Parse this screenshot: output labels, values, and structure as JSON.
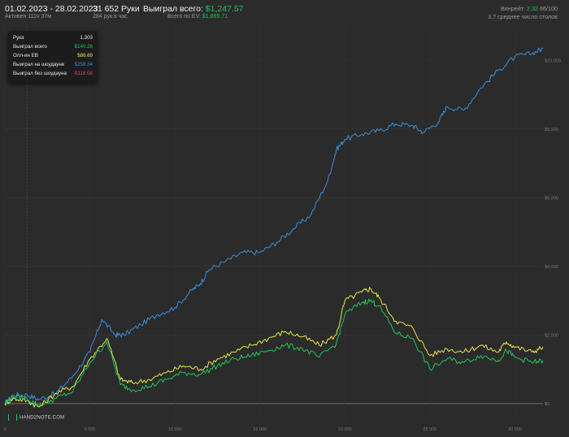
{
  "header": {
    "date_range": "01.02.2023 - 28.02.2023",
    "active_time": "Активен 111ч 37м",
    "hands_total": "31 652 Руки",
    "hands_per_hour": "284 рук в час",
    "won_label": "Выиграл всего:",
    "won_value": "$1,247.57",
    "ev_label": "Всего по EV:",
    "ev_value": "$1,665.71",
    "winrate_label": "Винрейт:",
    "winrate_value": "2.32",
    "winrate_suffix": "66/100",
    "avg_tables": "3.7 среднее число столов"
  },
  "tooltip": {
    "rows": [
      {
        "label": "Рука",
        "value": "1,303",
        "color": "#e8e8e8"
      },
      {
        "label": "Выиграл всего",
        "value": "$140.26",
        "color": "#22c55e"
      },
      {
        "label": "Олл-ин EB",
        "value": "$86.69",
        "color": "#e6e84a"
      },
      {
        "label": "Выиграл на шоудауне",
        "value": "$258.34",
        "color": "#3b8fd9"
      },
      {
        "label": "Выиграл без шоудауна",
        "value": "-$118.08",
        "color": "#e0457b"
      }
    ]
  },
  "logo": {
    "text": "HAND2NOTE.COM"
  },
  "colors": {
    "background": "#2b2b2b",
    "showdown": "#3b8fd9",
    "allin_ev": "#e6e84a",
    "total": "#22c55e",
    "zero_line": "#8a8a8a"
  },
  "chart_data": {
    "type": "line",
    "xlim": [
      0,
      31652
    ],
    "ylim": [
      -500,
      11000
    ],
    "x_ticks": [
      0,
      5000,
      10000,
      15000,
      20000,
      25000,
      30000
    ],
    "x_tick_labels": [
      "0",
      "5 000",
      "10 000",
      "15 000",
      "20 000",
      "25 000",
      "30 000"
    ],
    "y_ticks": [
      0,
      2000,
      4000,
      6000,
      8000,
      10000
    ],
    "y_tick_labels": [
      "$0",
      "$2,000",
      "$4,000",
      "$6,000",
      "$8,000",
      "$10,000"
    ],
    "grid": true,
    "series": [
      {
        "name": "Выиграл на шоудауне",
        "color": "#3b8fd9",
        "x": [
          0,
          500,
          1303,
          2000,
          3000,
          4000,
          5000,
          5700,
          6500,
          7000,
          8000,
          9000,
          10000,
          11000,
          11500,
          12000,
          13000,
          14000,
          15000,
          16000,
          17000,
          18000,
          19000,
          19500,
          20000,
          21000,
          22000,
          23000,
          24000,
          24600,
          25500,
          26000,
          27000,
          28000,
          29000,
          30000,
          31000,
          31652
        ],
        "values": [
          0,
          250,
          258,
          120,
          300,
          800,
          1500,
          2450,
          2000,
          2000,
          2300,
          2600,
          2800,
          3300,
          3500,
          3900,
          4150,
          4400,
          4400,
          4700,
          5100,
          5500,
          6500,
          7400,
          7700,
          7850,
          7950,
          8150,
          8100,
          7900,
          8200,
          8650,
          8550,
          9200,
          9700,
          10100,
          10200,
          10350
        ]
      },
      {
        "name": "Олл-ин EB",
        "color": "#e6e84a",
        "x": [
          0,
          500,
          1303,
          2000,
          3000,
          4000,
          5000,
          6000,
          6800,
          7500,
          8500,
          9500,
          10500,
          11500,
          12500,
          13500,
          14500,
          15500,
          16500,
          17500,
          18500,
          19500,
          20000,
          21000,
          21500,
          22000,
          23000,
          24000,
          25000,
          26000,
          27000,
          28000,
          29000,
          29500,
          30000,
          31000,
          31652
        ],
        "values": [
          0,
          150,
          87,
          -100,
          300,
          500,
          1300,
          1900,
          700,
          600,
          700,
          900,
          1100,
          1000,
          1300,
          1500,
          1700,
          1900,
          2100,
          1950,
          1700,
          2000,
          3000,
          3250,
          3350,
          3100,
          2400,
          2200,
          1400,
          1600,
          1500,
          1700,
          1500,
          1800,
          1650,
          1500,
          1650
        ]
      },
      {
        "name": "Выиграл всего",
        "color": "#22c55e",
        "x": [
          0,
          500,
          1303,
          2000,
          3000,
          4000,
          5000,
          6000,
          6800,
          7500,
          8500,
          9500,
          10500,
          11500,
          12500,
          13500,
          14500,
          15500,
          16500,
          17500,
          18500,
          19500,
          20000,
          21000,
          21500,
          22000,
          23000,
          24000,
          25000,
          26000,
          27000,
          28000,
          29000,
          29500,
          30000,
          31000,
          31652
        ],
        "values": [
          0,
          200,
          140,
          -50,
          150,
          350,
          1200,
          1800,
          550,
          400,
          500,
          700,
          900,
          850,
          1100,
          1300,
          1400,
          1550,
          1700,
          1600,
          1350,
          1750,
          2600,
          2950,
          3000,
          2850,
          2050,
          1900,
          1000,
          1300,
          1200,
          1400,
          1250,
          1550,
          1350,
          1200,
          1250
        ]
      }
    ]
  }
}
